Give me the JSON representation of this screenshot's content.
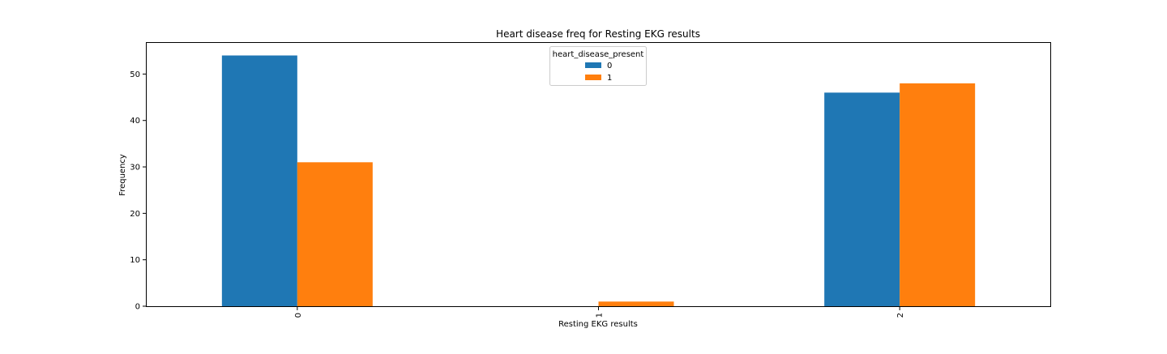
{
  "chart_data": {
    "type": "bar",
    "title": "Heart disease freq for Resting EKG results",
    "xlabel": "Resting EKG results",
    "ylabel": "Frequency",
    "categories": [
      "0",
      "1",
      "2"
    ],
    "series": [
      {
        "name": "0",
        "values": [
          54,
          0,
          46
        ]
      },
      {
        "name": "1",
        "values": [
          31,
          1,
          48
        ]
      }
    ],
    "ylim": [
      0,
      56.7
    ],
    "yticks": [
      "0",
      "10",
      "20",
      "30",
      "40",
      "50"
    ],
    "legend": {
      "title": "heart_disease_present",
      "placement": "upper center"
    },
    "grid": false,
    "colors": {
      "series_0": "#1f77b4",
      "series_1": "#ff7f0e"
    }
  }
}
